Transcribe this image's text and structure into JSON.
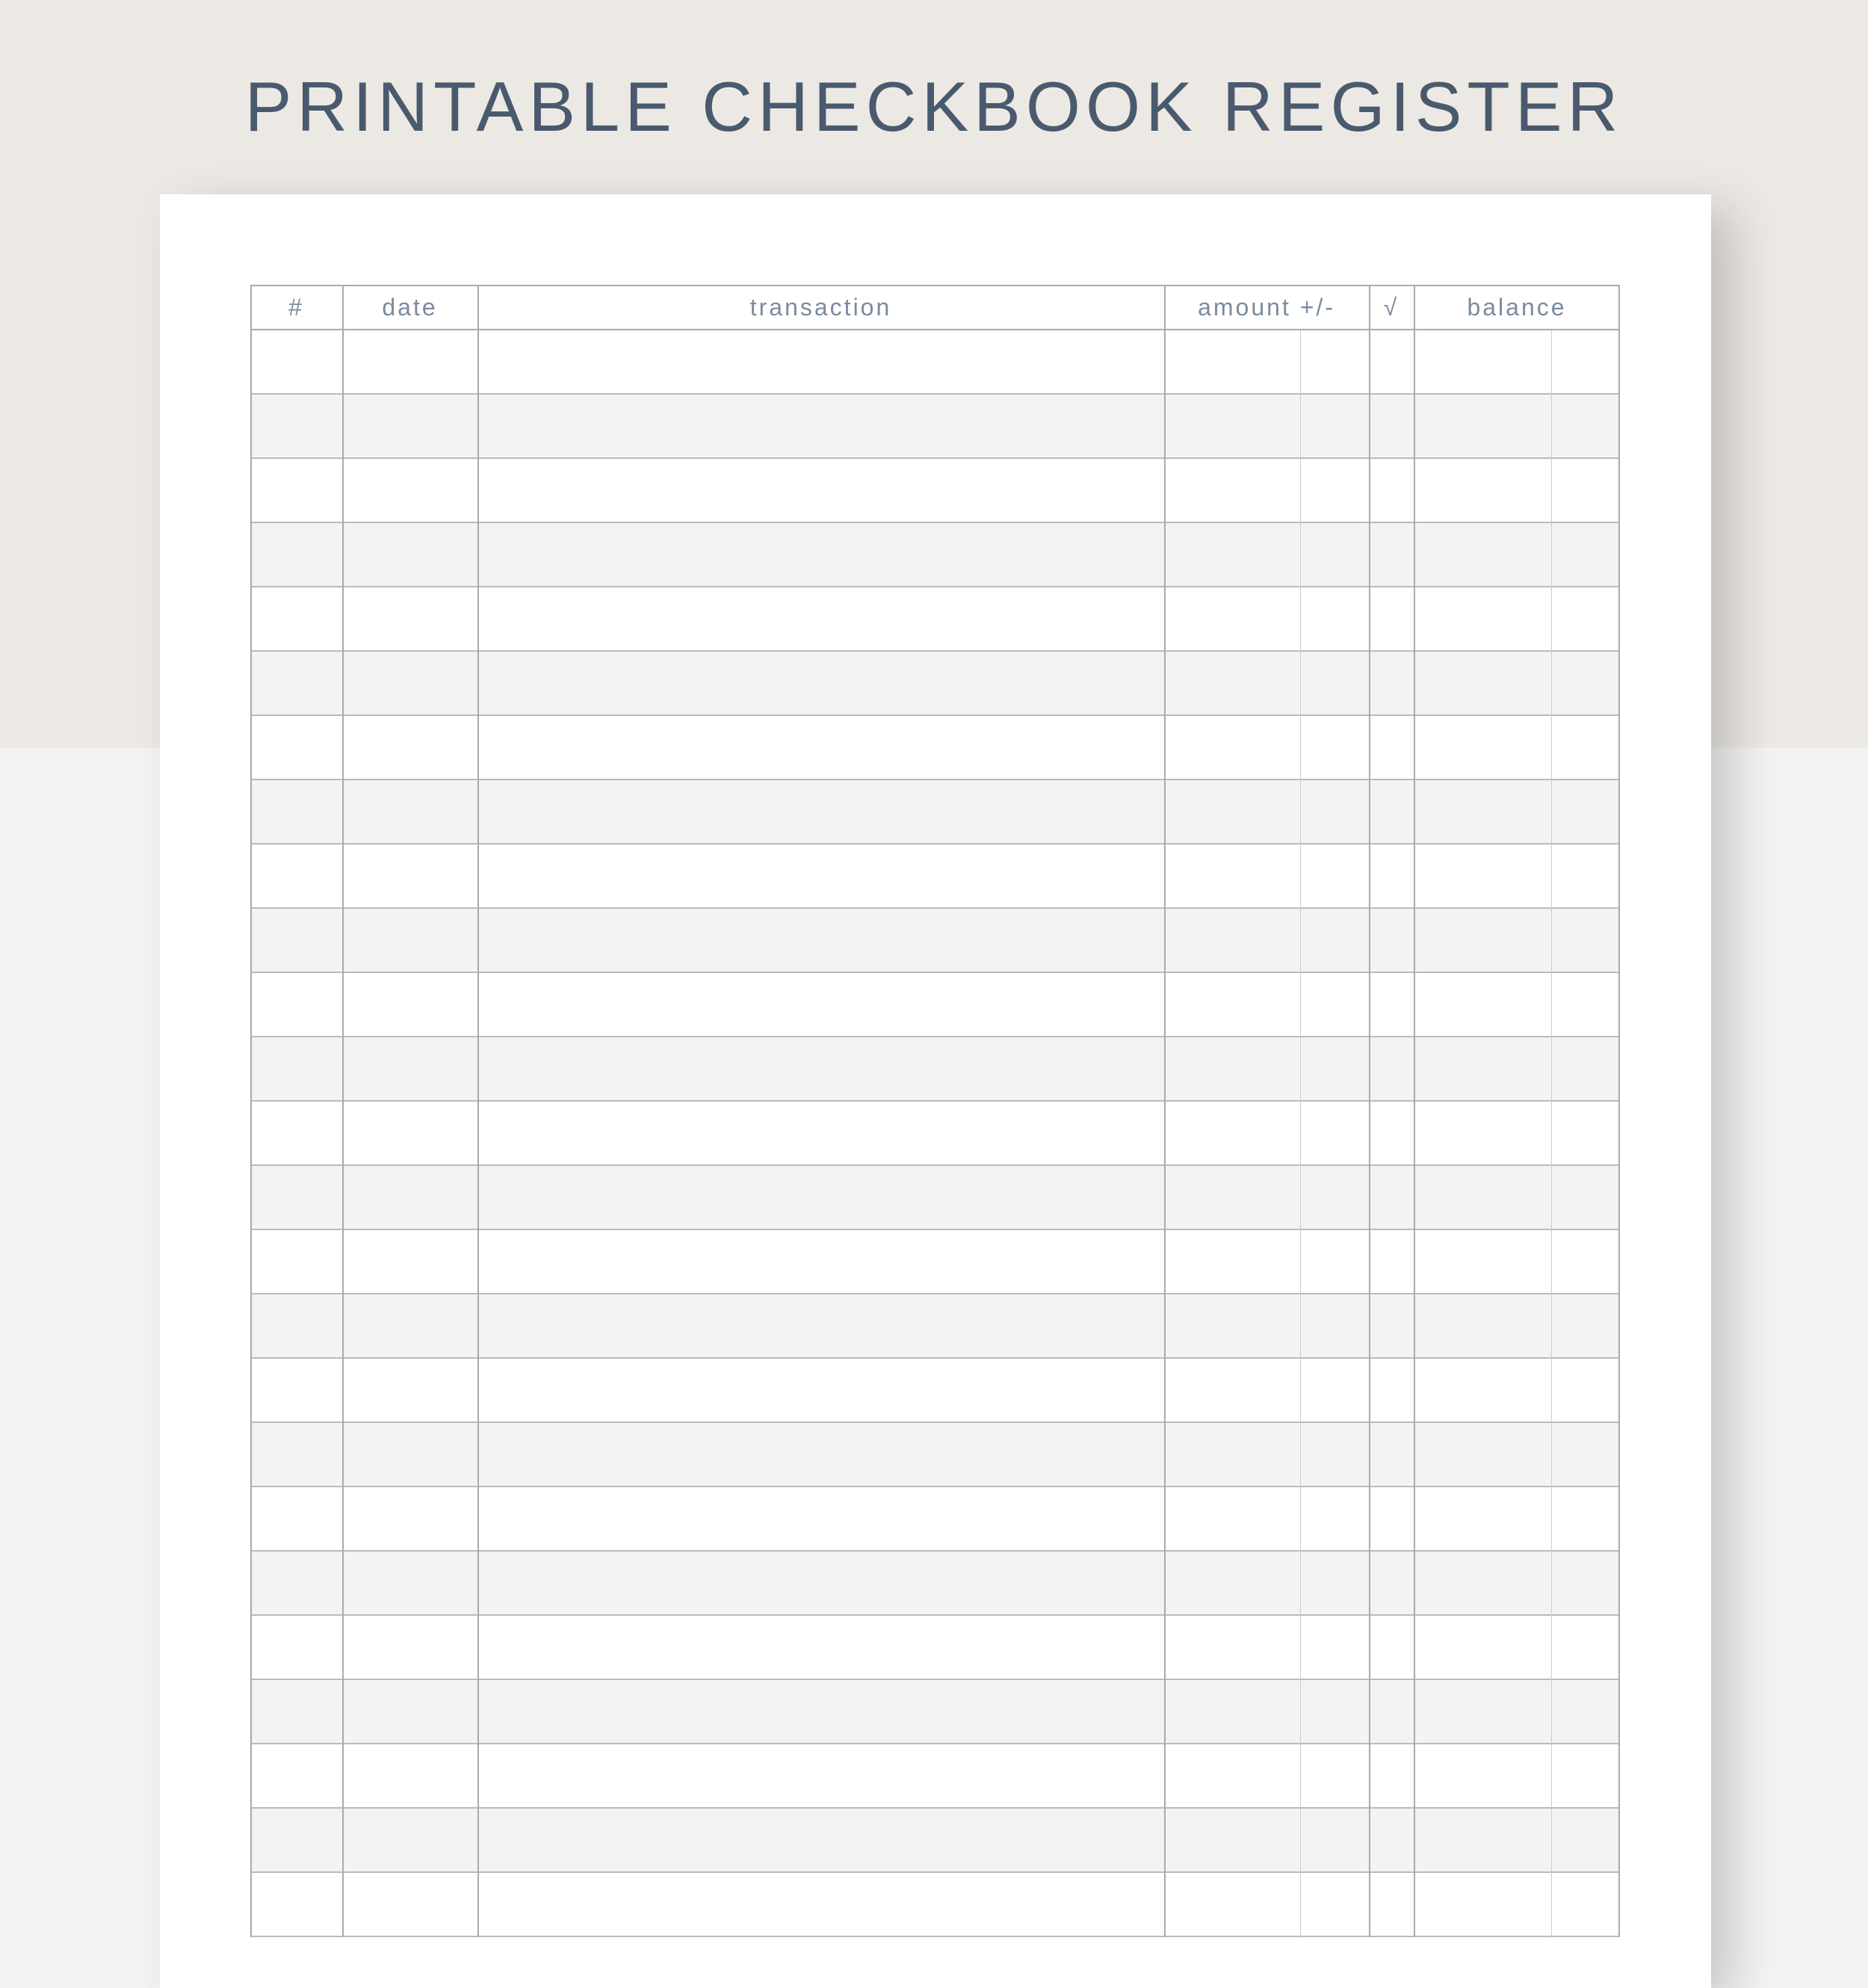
{
  "title": "PRINTABLE CHECKBOOK REGISTER",
  "table": {
    "columns": [
      {
        "key": "number",
        "label": "#"
      },
      {
        "key": "date",
        "label": "date"
      },
      {
        "key": "transaction",
        "label": "transaction"
      },
      {
        "key": "amount",
        "label": "amount +/-"
      },
      {
        "key": "check",
        "label": "√"
      },
      {
        "key": "balance",
        "label": "balance"
      }
    ]
  },
  "colors": {
    "title": "#4a5a6e",
    "header_text": "#7a8ba0",
    "band": "#ece9e4",
    "stripe": "#f3f3f3",
    "grid": "#aaaaaa"
  }
}
